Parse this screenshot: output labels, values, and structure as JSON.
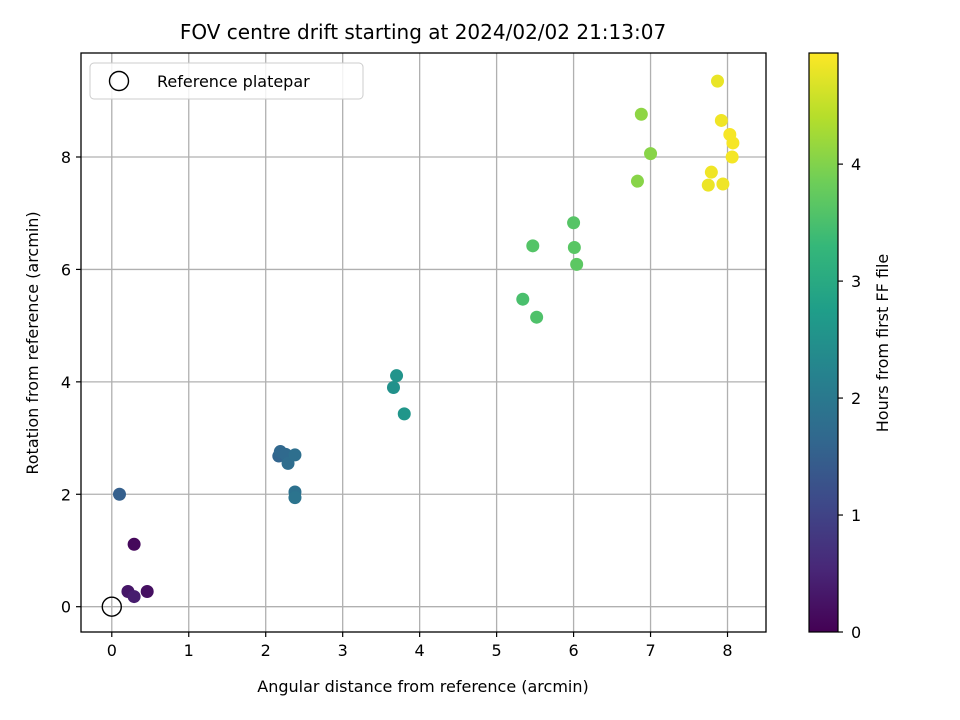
{
  "chart_data": {
    "type": "scatter",
    "title": "FOV centre drift starting at 2024/02/02 21:13:07",
    "xlabel": "Angular distance from reference (arcmin)",
    "ylabel": "Rotation from reference (arcmin)",
    "xlim": [
      -0.4,
      8.5
    ],
    "ylim": [
      -0.45,
      9.85
    ],
    "xticks": [
      0,
      1,
      2,
      3,
      4,
      5,
      6,
      7,
      8
    ],
    "yticks": [
      0,
      2,
      4,
      6,
      8
    ],
    "grid": true,
    "legend": {
      "location": "top-left",
      "entries": [
        "Reference platepar"
      ]
    },
    "reference_point": {
      "x": 0,
      "y": 0,
      "marker": "open-circle"
    },
    "colorbar": {
      "label": "Hours from first FF file",
      "range": [
        0,
        4.95
      ],
      "ticks": [
        0,
        1,
        2,
        3,
        4
      ],
      "colormap": "viridis"
    },
    "colormap_stops": [
      "#440154",
      "#482878",
      "#3e4989",
      "#31688e",
      "#26828e",
      "#1f9e89",
      "#35b779",
      "#6ece58",
      "#b5de2b",
      "#fde725"
    ],
    "points": [
      {
        "x": 0.29,
        "y": 1.11,
        "c": 0.1
      },
      {
        "x": 0.21,
        "y": 0.27,
        "c": 0.3
      },
      {
        "x": 0.29,
        "y": 0.18,
        "c": 0.4
      },
      {
        "x": 0.46,
        "y": 0.27,
        "c": 0.2
      },
      {
        "x": 0.1,
        "y": 2.0,
        "c": 1.5
      },
      {
        "x": 2.17,
        "y": 2.68,
        "c": 1.6
      },
      {
        "x": 2.19,
        "y": 2.76,
        "c": 1.65
      },
      {
        "x": 2.26,
        "y": 2.71,
        "c": 1.7
      },
      {
        "x": 2.29,
        "y": 2.55,
        "c": 1.75
      },
      {
        "x": 2.38,
        "y": 2.7,
        "c": 1.8
      },
      {
        "x": 2.38,
        "y": 2.04,
        "c": 1.85
      },
      {
        "x": 2.38,
        "y": 1.94,
        "c": 1.9
      },
      {
        "x": 3.66,
        "y": 3.9,
        "c": 2.5
      },
      {
        "x": 3.7,
        "y": 4.11,
        "c": 2.55
      },
      {
        "x": 3.8,
        "y": 3.43,
        "c": 2.6
      },
      {
        "x": 5.34,
        "y": 5.47,
        "c": 3.5
      },
      {
        "x": 5.52,
        "y": 5.15,
        "c": 3.55
      },
      {
        "x": 5.47,
        "y": 6.42,
        "c": 3.6
      },
      {
        "x": 6.0,
        "y": 6.83,
        "c": 3.62
      },
      {
        "x": 6.01,
        "y": 6.39,
        "c": 3.65
      },
      {
        "x": 6.04,
        "y": 6.09,
        "c": 3.68
      },
      {
        "x": 6.83,
        "y": 7.57,
        "c": 4.05
      },
      {
        "x": 6.88,
        "y": 8.76,
        "c": 4.1
      },
      {
        "x": 7.0,
        "y": 8.06,
        "c": 4.05
      },
      {
        "x": 7.87,
        "y": 9.35,
        "c": 4.8
      },
      {
        "x": 7.92,
        "y": 8.65,
        "c": 4.85
      },
      {
        "x": 8.03,
        "y": 8.4,
        "c": 4.9
      },
      {
        "x": 8.07,
        "y": 8.25,
        "c": 4.9
      },
      {
        "x": 8.06,
        "y": 8.0,
        "c": 4.88
      },
      {
        "x": 7.79,
        "y": 7.73,
        "c": 4.85
      },
      {
        "x": 7.75,
        "y": 7.5,
        "c": 4.82
      },
      {
        "x": 7.94,
        "y": 7.52,
        "c": 4.84
      }
    ]
  }
}
